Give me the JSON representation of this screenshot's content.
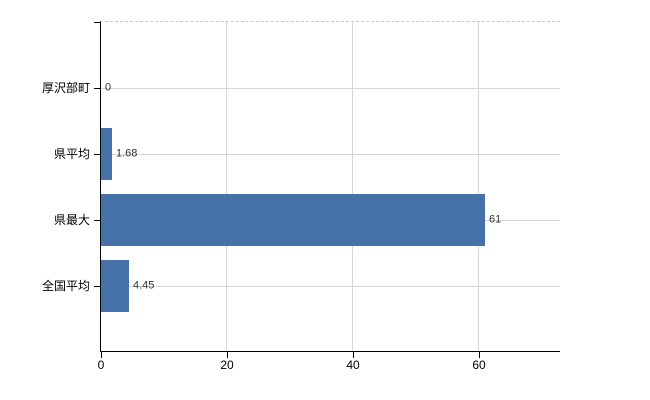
{
  "chart_data": {
    "type": "bar",
    "orientation": "horizontal",
    "title": "",
    "xlabel": "",
    "ylabel": "",
    "categories": [
      "厚沢部町",
      "県平均",
      "県最大",
      "全国平均"
    ],
    "values": [
      0,
      1.68,
      61,
      4.45
    ],
    "value_labels": [
      "0",
      "1.68",
      "61",
      "4.45"
    ],
    "x_ticks": [
      0,
      20,
      40,
      60
    ],
    "x_tick_labels": [
      "0",
      "20",
      "40",
      "60"
    ],
    "xlim": [
      0,
      72.9
    ],
    "grid": "on",
    "legend_position": "none",
    "bar_color": "#4472a8",
    "grid_color": "#d6d6d6",
    "top_border_color": "#c9c9c9",
    "axis_color": "#000000",
    "value_label_color": "#333333",
    "tick_label_color": "#000000"
  }
}
